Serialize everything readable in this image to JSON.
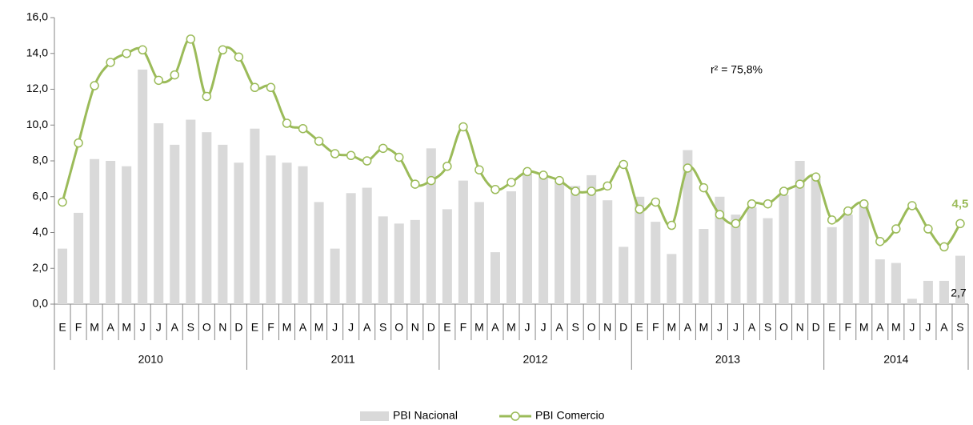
{
  "chart_data": {
    "type": "bar_line",
    "annotation": "r² = 75,8%",
    "categories": [
      "E",
      "F",
      "M",
      "A",
      "M",
      "J",
      "J",
      "A",
      "S",
      "O",
      "N",
      "D",
      "E",
      "F",
      "M",
      "A",
      "M",
      "J",
      "J",
      "A",
      "S",
      "O",
      "N",
      "D",
      "E",
      "F",
      "M",
      "A",
      "M",
      "J",
      "J",
      "A",
      "S",
      "O",
      "N",
      "D",
      "E",
      "F",
      "M",
      "A",
      "M",
      "J",
      "J",
      "A",
      "S",
      "O",
      "N",
      "D",
      "E",
      "F",
      "M",
      "A",
      "M",
      "J",
      "J",
      "A",
      "S"
    ],
    "year_groups": [
      "2010",
      "2011",
      "2012",
      "2013",
      "2014"
    ],
    "series": [
      {
        "name": "PBI Nacional",
        "type": "bar",
        "color": "#d9d9d9",
        "values": [
          3.1,
          5.1,
          8.1,
          8.0,
          7.7,
          13.1,
          10.1,
          8.9,
          10.3,
          9.6,
          8.9,
          7.9,
          9.8,
          8.3,
          7.9,
          7.7,
          5.7,
          3.1,
          6.2,
          6.5,
          4.9,
          4.5,
          4.7,
          8.7,
          5.3,
          6.9,
          5.7,
          2.9,
          6.3,
          7.3,
          7.1,
          6.9,
          6.6,
          7.2,
          5.8,
          3.2,
          6.0,
          4.6,
          2.8,
          8.6,
          4.2,
          6.0,
          5.0,
          5.4,
          4.8,
          6.1,
          8.0,
          7.0,
          4.3,
          5.0,
          5.5,
          2.5,
          2.3,
          0.3,
          1.3,
          1.3,
          2.7
        ],
        "value_labels": [
          null,
          null,
          null,
          null,
          null,
          null,
          null,
          null,
          null,
          null,
          null,
          null,
          null,
          null,
          null,
          null,
          null,
          null,
          null,
          null,
          null,
          null,
          null,
          null,
          null,
          null,
          null,
          null,
          null,
          null,
          null,
          null,
          null,
          null,
          null,
          null,
          null,
          null,
          null,
          null,
          null,
          null,
          null,
          null,
          null,
          null,
          null,
          null,
          null,
          null,
          null,
          null,
          null,
          null,
          null,
          null,
          "2,7"
        ],
        "label_color": "#000000"
      },
      {
        "name": "PBI Comercio",
        "type": "line",
        "color": "#9bbb59",
        "values": [
          5.7,
          9.0,
          12.2,
          13.5,
          14.0,
          14.2,
          12.5,
          12.8,
          14.8,
          11.6,
          14.2,
          13.8,
          12.1,
          12.1,
          10.1,
          9.8,
          9.1,
          8.4,
          8.3,
          8.0,
          8.7,
          8.2,
          6.7,
          6.9,
          7.7,
          9.9,
          7.5,
          6.4,
          6.8,
          7.4,
          7.2,
          6.9,
          6.3,
          6.3,
          6.6,
          7.8,
          5.3,
          5.7,
          4.4,
          7.6,
          6.5,
          5.0,
          4.5,
          5.6,
          5.6,
          6.3,
          6.7,
          7.1,
          4.7,
          5.2,
          5.6,
          3.5,
          4.2,
          5.5,
          4.2,
          3.2,
          4.5
        ],
        "value_labels": [
          null,
          null,
          null,
          null,
          null,
          null,
          null,
          null,
          null,
          null,
          null,
          null,
          null,
          null,
          null,
          null,
          null,
          null,
          null,
          null,
          null,
          null,
          null,
          null,
          null,
          null,
          null,
          null,
          null,
          null,
          null,
          null,
          null,
          null,
          null,
          null,
          null,
          null,
          null,
          null,
          null,
          null,
          null,
          null,
          null,
          null,
          null,
          null,
          null,
          null,
          null,
          null,
          null,
          null,
          null,
          null,
          "4,5"
        ],
        "label_color": "#9bbb59"
      }
    ],
    "ylim": [
      0,
      16
    ],
    "yticks": [
      {
        "value": 0,
        "label": "0,0"
      },
      {
        "value": 2,
        "label": "2,0"
      },
      {
        "value": 4,
        "label": "4,0"
      },
      {
        "value": 6,
        "label": "6,0"
      },
      {
        "value": 8,
        "label": "8,0"
      },
      {
        "value": 10,
        "label": "10,0"
      },
      {
        "value": 12,
        "label": "12,0"
      },
      {
        "value": 14,
        "label": "14,0"
      },
      {
        "value": 16,
        "label": "16,0"
      }
    ],
    "legend": "bottom"
  }
}
